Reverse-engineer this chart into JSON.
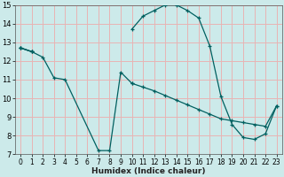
{
  "xlabel": "Humidex (Indice chaleur)",
  "ylabel": "",
  "xlim": [
    -0.5,
    23.5
  ],
  "ylim": [
    7,
    15
  ],
  "xticks": [
    0,
    1,
    2,
    3,
    4,
    5,
    6,
    7,
    8,
    9,
    10,
    11,
    12,
    13,
    14,
    15,
    16,
    17,
    18,
    19,
    20,
    21,
    22,
    23
  ],
  "yticks": [
    7,
    8,
    9,
    10,
    11,
    12,
    13,
    14,
    15
  ],
  "bg_color": "#cceaea",
  "grid_color": "#e8b4b4",
  "line_color": "#006060",
  "line1_x": [
    0,
    1,
    2,
    3,
    4,
    7,
    8,
    9,
    10
  ],
  "line1_y": [
    12.7,
    12.5,
    12.2,
    11.1,
    11.0,
    7.2,
    7.2,
    11.4,
    10.8
  ],
  "line2_x": [
    0,
    1,
    10,
    11,
    12,
    13,
    14,
    15,
    16,
    17,
    18,
    19,
    20,
    21,
    22,
    23
  ],
  "line2_y": [
    12.7,
    12.5,
    13.7,
    14.4,
    14.7,
    15.0,
    15.0,
    14.7,
    14.3,
    12.8,
    10.1,
    8.6,
    7.9,
    7.8,
    8.1,
    9.6
  ],
  "line3_x": [
    0,
    1,
    10,
    11,
    12,
    13,
    14,
    15,
    16,
    17,
    18,
    19,
    20,
    21,
    22,
    23
  ],
  "line3_y": [
    12.7,
    12.5,
    10.8,
    10.6,
    10.4,
    10.15,
    9.9,
    9.65,
    9.4,
    9.15,
    8.9,
    8.8,
    8.7,
    8.6,
    8.5,
    9.6
  ]
}
